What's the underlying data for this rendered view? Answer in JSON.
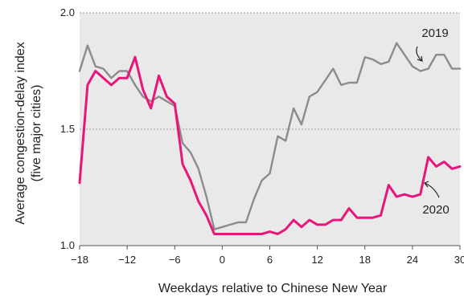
{
  "chart_data": {
    "type": "line",
    "xlabel": "Weekdays relative to Chinese New Year",
    "ylabel_line1": "Average congestion-delay index",
    "ylabel_line2": "(five major cities)",
    "xlim": [
      -18,
      30
    ],
    "ylim": [
      1.0,
      2.0
    ],
    "x_ticks": [
      -18,
      -12,
      -6,
      0,
      6,
      12,
      18,
      24,
      30
    ],
    "x_tick_labels": [
      "−18",
      "−12",
      "−6",
      "0",
      "6",
      "12",
      "18",
      "24",
      "30"
    ],
    "y_ticks": [
      1.0,
      1.5,
      2.0
    ],
    "y_tick_labels": [
      "1.0",
      "1.5",
      "2.0"
    ],
    "gridlines_y": [
      1.5,
      2.0
    ],
    "plot_background": "#e9e9ea",
    "series": [
      {
        "name": "2019",
        "color": "#8c8c8c",
        "x": [
          -18,
          -17,
          -16,
          -15,
          -14,
          -13,
          -12,
          -11,
          -10,
          -9,
          -8,
          -7,
          -6,
          -5,
          -4,
          -3,
          -2,
          -1,
          0,
          1,
          2,
          3,
          4,
          5,
          6,
          7,
          8,
          9,
          10,
          11,
          12,
          13,
          14,
          15,
          16,
          17,
          18,
          19,
          20,
          21,
          22,
          23,
          24,
          25,
          26,
          27,
          28,
          29,
          30
        ],
        "values": [
          1.75,
          1.86,
          1.77,
          1.76,
          1.72,
          1.75,
          1.75,
          1.69,
          1.64,
          1.62,
          1.64,
          1.62,
          1.6,
          1.44,
          1.4,
          1.33,
          1.21,
          1.07,
          1.08,
          1.09,
          1.1,
          1.1,
          1.2,
          1.28,
          1.31,
          1.47,
          1.45,
          1.59,
          1.52,
          1.64,
          1.66,
          1.71,
          1.76,
          1.69,
          1.7,
          1.7,
          1.81,
          1.8,
          1.78,
          1.79,
          1.87,
          1.82,
          1.77,
          1.75,
          1.76,
          1.82,
          1.82,
          1.76,
          1.76
        ]
      },
      {
        "name": "2020",
        "color": "#e8157a",
        "x": [
          -18,
          -17,
          -16,
          -15,
          -14,
          -13,
          -12,
          -11,
          -10,
          -9,
          -8,
          -7,
          -6,
          -5,
          -4,
          -3,
          -2,
          -1,
          0,
          1,
          2,
          3,
          4,
          5,
          6,
          7,
          8,
          9,
          10,
          11,
          12,
          13,
          14,
          15,
          16,
          17,
          18,
          19,
          20,
          21,
          22,
          23,
          24,
          25,
          26,
          27,
          28,
          29,
          30
        ],
        "values": [
          1.27,
          1.69,
          1.75,
          1.72,
          1.69,
          1.72,
          1.72,
          1.81,
          1.67,
          1.59,
          1.73,
          1.64,
          1.61,
          1.35,
          1.28,
          1.19,
          1.13,
          1.05,
          1.05,
          1.05,
          1.05,
          1.05,
          1.05,
          1.05,
          1.06,
          1.05,
          1.07,
          1.11,
          1.08,
          1.11,
          1.09,
          1.09,
          1.11,
          1.11,
          1.16,
          1.12,
          1.12,
          1.12,
          1.13,
          1.26,
          1.21,
          1.22,
          1.21,
          1.22,
          1.38,
          1.34,
          1.36,
          1.33,
          1.34
        ]
      }
    ],
    "annotations": [
      {
        "text": "2019",
        "series": "2019"
      },
      {
        "text": "2020",
        "series": "2020"
      }
    ]
  }
}
